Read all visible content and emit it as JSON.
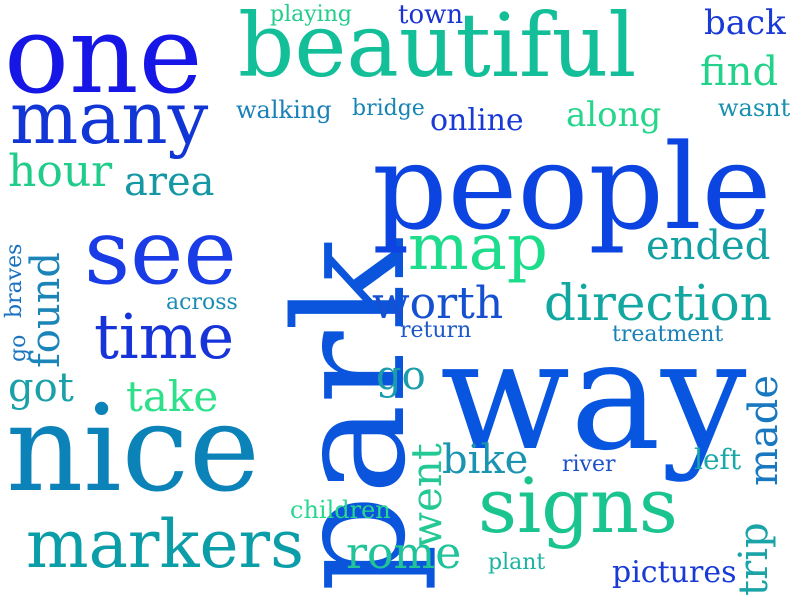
{
  "words": [
    {
      "key": "park",
      "text": "park",
      "color": "#0a55dc",
      "vertical": true
    },
    {
      "key": "people",
      "text": "people",
      "color": "#0b44e0",
      "vertical": false
    },
    {
      "key": "way",
      "text": "way",
      "color": "#0855e0",
      "vertical": false
    },
    {
      "key": "nice",
      "text": "nice",
      "color": "#0b82b8",
      "vertical": false
    },
    {
      "key": "one",
      "text": "one",
      "color": "#1616e6",
      "vertical": false
    },
    {
      "key": "beautiful",
      "text": "beautiful",
      "color": "#12bf98",
      "vertical": false
    },
    {
      "key": "see",
      "text": "see",
      "color": "#1a3ce6",
      "vertical": false
    },
    {
      "key": "many",
      "text": "many",
      "color": "#1236d6",
      "vertical": false
    },
    {
      "key": "signs",
      "text": "signs",
      "color": "#19c48f",
      "vertical": false
    },
    {
      "key": "markers",
      "text": "markers",
      "color": "#0b9ea8",
      "vertical": false
    },
    {
      "key": "time",
      "text": "time",
      "color": "#1734d8",
      "vertical": false
    },
    {
      "key": "map",
      "text": "map",
      "color": "#1ddc8c",
      "vertical": false
    },
    {
      "key": "direction",
      "text": "direction",
      "color": "#12a7a0",
      "vertical": false
    },
    {
      "key": "worth",
      "text": "worth",
      "color": "#1550d0",
      "vertical": false
    },
    {
      "key": "ended",
      "text": "ended",
      "color": "#13a0a3",
      "vertical": false
    },
    {
      "key": "hour",
      "text": "hour",
      "color": "#20cc8a",
      "vertical": false
    },
    {
      "key": "area",
      "text": "area",
      "color": "#1598a4",
      "vertical": false
    },
    {
      "key": "find",
      "text": "find",
      "color": "#22d18a",
      "vertical": false
    },
    {
      "key": "back",
      "text": "back",
      "color": "#1a3ad6",
      "vertical": false
    },
    {
      "key": "along",
      "text": "along",
      "color": "#26d68c",
      "vertical": false
    },
    {
      "key": "online",
      "text": "online",
      "color": "#1a3ad6",
      "vertical": false
    },
    {
      "key": "walking",
      "text": "walking",
      "color": "#1a80b8",
      "vertical": false
    },
    {
      "key": "bridge",
      "text": "bridge",
      "color": "#1884b4",
      "vertical": false
    },
    {
      "key": "playing",
      "text": "playing",
      "color": "#24cc8c",
      "vertical": false
    },
    {
      "key": "town",
      "text": "town",
      "color": "#1a32d0",
      "vertical": false
    },
    {
      "key": "wasnt",
      "text": "wasnt",
      "color": "#1890b0",
      "vertical": false
    },
    {
      "key": "take",
      "text": "take",
      "color": "#2ee08a",
      "vertical": false
    },
    {
      "key": "got",
      "text": "got",
      "color": "#1aa0a8",
      "vertical": false
    },
    {
      "key": "found",
      "text": "found",
      "color": "#1b84b8",
      "vertical": true
    },
    {
      "key": "braves",
      "text": "braves",
      "color": "#1870c0",
      "vertical": true
    },
    {
      "key": "go_small",
      "text": "go",
      "color": "#1a74c0",
      "vertical": true
    },
    {
      "key": "across",
      "text": "across",
      "color": "#1a8cb4",
      "vertical": false
    },
    {
      "key": "go",
      "text": "go",
      "color": "#1a9cac",
      "vertical": false
    },
    {
      "key": "return",
      "text": "return",
      "color": "#1c58c8",
      "vertical": false
    },
    {
      "key": "treatment",
      "text": "treatment",
      "color": "#1a80b8",
      "vertical": false
    },
    {
      "key": "made",
      "text": "made",
      "color": "#1878c0",
      "vertical": true
    },
    {
      "key": "bike",
      "text": "bike",
      "color": "#1a94b0",
      "vertical": false
    },
    {
      "key": "river",
      "text": "river",
      "color": "#1a50c8",
      "vertical": false
    },
    {
      "key": "left",
      "text": "left",
      "color": "#1aa8a8",
      "vertical": false
    },
    {
      "key": "went",
      "text": "went",
      "color": "#24c894",
      "vertical": true
    },
    {
      "key": "children",
      "text": "children",
      "color": "#28d890",
      "vertical": false
    },
    {
      "key": "rome",
      "text": "rome",
      "color": "#20c498",
      "vertical": false
    },
    {
      "key": "plant",
      "text": "plant",
      "color": "#1ab4a0",
      "vertical": false
    },
    {
      "key": "trip",
      "text": "trip",
      "color": "#1aa4a8",
      "vertical": true
    },
    {
      "key": "pictures",
      "text": "pictures",
      "color": "#1a3ad6",
      "vertical": false
    }
  ]
}
